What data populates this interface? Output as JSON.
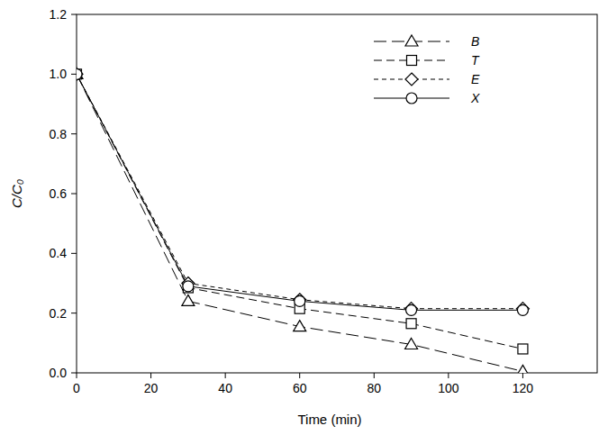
{
  "chart_data": {
    "type": "line",
    "x_label": "Time (min)",
    "y_label": "C/C₀",
    "x": [
      0,
      30,
      60,
      90,
      120
    ],
    "xlim": [
      0,
      140
    ],
    "xticks": [
      0,
      20,
      40,
      60,
      80,
      100,
      120
    ],
    "ylim": [
      0,
      1.2
    ],
    "yticks": [
      {
        "value": 0,
        "label": "0.0"
      },
      0.2,
      0.4,
      0.6,
      0.8,
      {
        "value": 1,
        "label": "1.0"
      },
      1.2
    ],
    "legend": "upper right",
    "grid": false,
    "series": [
      {
        "name": "B",
        "color": "#000000",
        "marker": "triangle",
        "line_style": "long-dash",
        "values": [
          1.0,
          0.24,
          0.155,
          0.095,
          0.005
        ]
      },
      {
        "name": "T",
        "color": "#000000",
        "marker": "square",
        "line_style": "dashed",
        "values": [
          1.0,
          0.285,
          0.215,
          0.165,
          0.08
        ]
      },
      {
        "name": "E",
        "color": "#000000",
        "marker": "diamond",
        "line_style": "short-dash",
        "values": [
          1.0,
          0.3,
          0.245,
          0.215,
          0.215
        ]
      },
      {
        "name": "X",
        "color": "#000000",
        "marker": "circle",
        "line_style": "solid",
        "values": [
          1.0,
          0.29,
          0.24,
          0.21,
          0.21
        ]
      }
    ]
  }
}
